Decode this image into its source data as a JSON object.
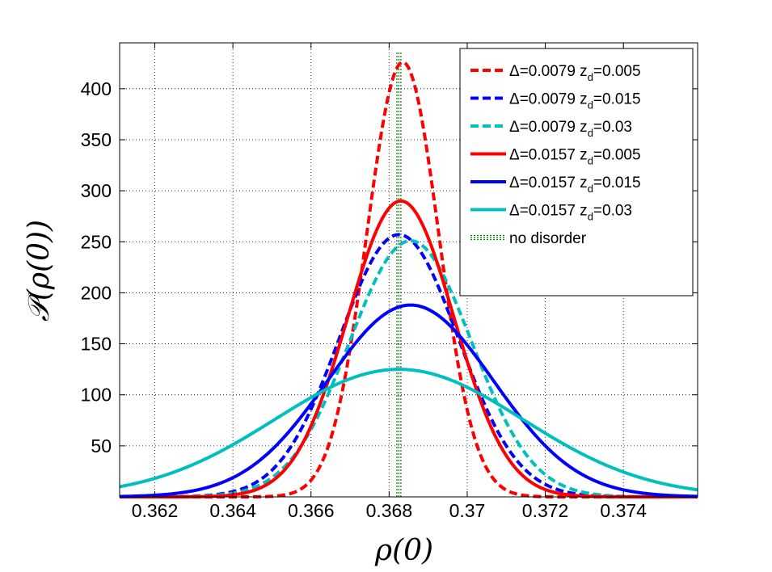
{
  "chart_data": {
    "type": "line",
    "xlabel": "ρ(0)",
    "ylabel": "𝒫(ρ(0))",
    "xlim": [
      0.3611,
      0.3759
    ],
    "ylim": [
      0,
      445
    ],
    "grid": true,
    "legend_position": "top-right",
    "xticks": [
      {
        "value": 0.362,
        "label": "0.362"
      },
      {
        "value": 0.364,
        "label": "0.364"
      },
      {
        "value": 0.366,
        "label": "0.366"
      },
      {
        "value": 0.368,
        "label": "0.368"
      },
      {
        "value": 0.37,
        "label": "0.37"
      },
      {
        "value": 0.372,
        "label": "0.372"
      },
      {
        "value": 0.374,
        "label": "0.374"
      }
    ],
    "yticks": [
      {
        "value": 50,
        "label": "50"
      },
      {
        "value": 100,
        "label": "100"
      },
      {
        "value": 150,
        "label": "150"
      },
      {
        "value": 200,
        "label": "200"
      },
      {
        "value": 250,
        "label": "250"
      },
      {
        "value": 300,
        "label": "300"
      },
      {
        "value": 350,
        "label": "350"
      },
      {
        "value": 400,
        "label": "400"
      }
    ],
    "no_disorder": {
      "label": "no disorder",
      "x": 0.36825,
      "color": "#008000",
      "style": "dotted"
    },
    "series": [
      {
        "name": "Δ=0.0079 z_d=0.005",
        "main": "Δ=0.0079 z",
        "sub": "d",
        "tail": "=0.005",
        "color": "#ff0000",
        "style": "dashed",
        "mean": 0.36835,
        "peak": 426,
        "sigma": 0.00092
      },
      {
        "name": "Δ=0.0079 z_d=0.015",
        "main": "Δ=0.0079 z",
        "sub": "d",
        "tail": "=0.015",
        "color": "#0000ff",
        "style": "dashed",
        "mean": 0.36825,
        "peak": 257,
        "sigma": 0.00152
      },
      {
        "name": "Δ=0.0079 z_d=0.03",
        "main": "Δ=0.0079 z",
        "sub": "d",
        "tail": "=0.03",
        "color": "#00bfbf",
        "style": "dashed",
        "mean": 0.36855,
        "peak": 251,
        "sigma": 0.00156
      },
      {
        "name": "Δ=0.0157 z_d=0.005",
        "main": "Δ=0.0157 z",
        "sub": "d",
        "tail": "=0.005",
        "color": "#ff0000",
        "style": "solid",
        "mean": 0.3683,
        "peak": 290,
        "sigma": 0.00136
      },
      {
        "name": "Δ=0.0157 z_d=0.015",
        "main": "Δ=0.0157 z",
        "sub": "d",
        "tail": "=0.015",
        "color": "#0000ff",
        "style": "solid",
        "mean": 0.36855,
        "peak": 188,
        "sigma": 0.00212
      },
      {
        "name": "Δ=0.0157 z_d=0.03",
        "main": "Δ=0.0157 z",
        "sub": "d",
        "tail": "=0.03",
        "color": "#00bfbf",
        "style": "solid",
        "mean": 0.36825,
        "peak": 125,
        "sigma": 0.00318
      }
    ]
  }
}
